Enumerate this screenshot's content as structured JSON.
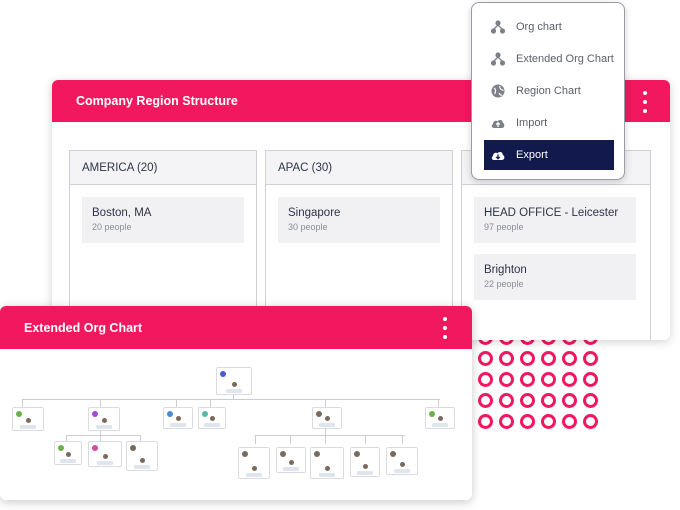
{
  "main_card": {
    "title": "Company Region Structure",
    "regions": [
      {
        "name": "AMERICA (20)",
        "locations": [
          {
            "name": "Boston, MA",
            "people": "20 people"
          }
        ]
      },
      {
        "name": "APAC (30)",
        "locations": [
          {
            "name": "Singapore",
            "people": "30 people"
          }
        ]
      },
      {
        "name": "",
        "locations": [
          {
            "name": "HEAD OFFICE - Leicester",
            "people": "97 people"
          },
          {
            "name": "Brighton",
            "people": "22 people"
          }
        ]
      }
    ]
  },
  "menu": {
    "items": [
      {
        "label": "Org chart",
        "icon": "org-chart-icon"
      },
      {
        "label": "Extended Org Chart",
        "icon": "org-chart-icon"
      },
      {
        "label": "Region Chart",
        "icon": "globe-icon"
      },
      {
        "label": "Import",
        "icon": "cloud-upload-icon"
      },
      {
        "label": "Export",
        "icon": "cloud-download-icon",
        "active": true
      }
    ]
  },
  "ext_card": {
    "title": "Extended Org Chart"
  },
  "colors": {
    "accent": "#f2185f",
    "menu_active": "#121a4d"
  }
}
